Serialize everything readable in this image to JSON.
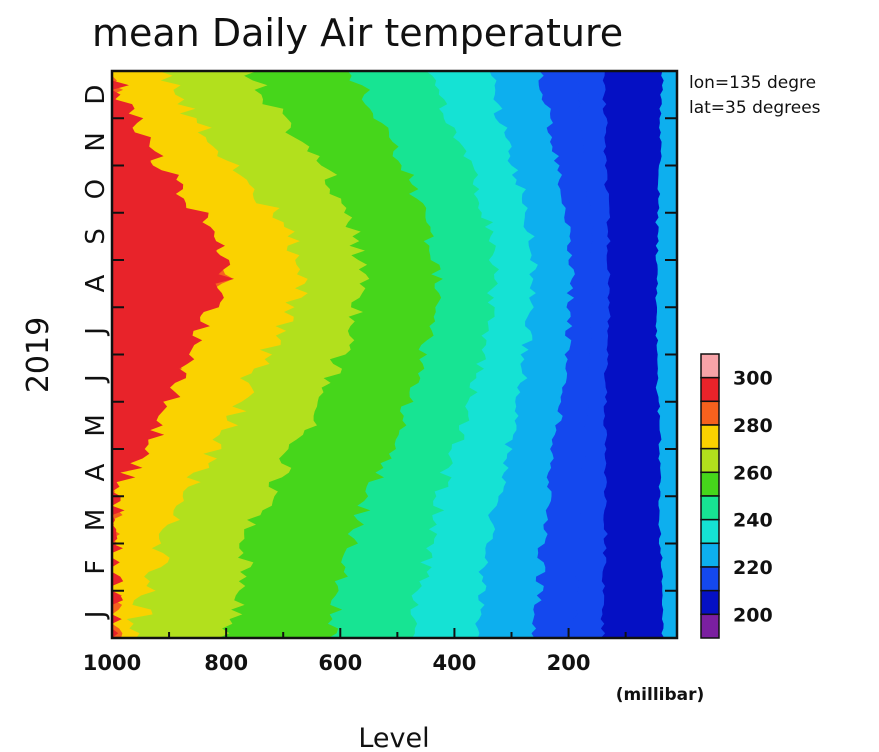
{
  "chart_data": {
    "type": "heatmap",
    "title": "mean Daily Air temperature",
    "xlabel": "Level",
    "x_unit": "(millibar)",
    "ylabel": "2019",
    "x_axis": {
      "reversed": true,
      "range": [
        1000,
        10
      ],
      "ticks": [
        1000,
        800,
        600,
        400,
        200
      ]
    },
    "y_axis": {
      "months": [
        "J",
        "F",
        "M",
        "A",
        "M",
        "J",
        "J",
        "A",
        "S",
        "O",
        "N",
        "D"
      ]
    },
    "annotations": [
      "lon=135 degre",
      "lat=35 degrees"
    ],
    "colorbar": {
      "labels": [
        300,
        280,
        260,
        240,
        220,
        200
      ],
      "levels": [
        {
          "value": 305,
          "color": "#f7a3a8"
        },
        {
          "value": 295,
          "color": "#e8232a"
        },
        {
          "value": 285,
          "color": "#f6611e"
        },
        {
          "value": 275,
          "color": "#fad200"
        },
        {
          "value": 265,
          "color": "#b2e01d"
        },
        {
          "value": 255,
          "color": "#46d61b"
        },
        {
          "value": 245,
          "color": "#17e493"
        },
        {
          "value": 235,
          "color": "#15e2d4"
        },
        {
          "value": 225,
          "color": "#0dafee"
        },
        {
          "value": 215,
          "color": "#1448ee"
        },
        {
          "value": 205,
          "color": "#0510c4"
        },
        {
          "value": 195,
          "color": "#7b1fa0"
        }
      ]
    },
    "band_boundaries": {
      "description_units": "millibar pressure level at which temperature falls below each threshold, sampled at month centers (Jan..Dec)",
      "t290": [
        1000,
        1000,
        1000,
        1000,
        950,
        900,
        860,
        800,
        850,
        920,
        980,
        1000
      ],
      "t280": [
        960,
        940,
        900,
        860,
        800,
        760,
        700,
        660,
        700,
        770,
        850,
        920
      ],
      "t270": [
        800,
        780,
        760,
        720,
        660,
        620,
        580,
        560,
        580,
        620,
        700,
        760
      ],
      "t260": [
        610,
        600,
        580,
        540,
        500,
        470,
        440,
        430,
        450,
        480,
        530,
        580
      ],
      "t250": [
        470,
        460,
        440,
        420,
        390,
        360,
        340,
        330,
        340,
        370,
        410,
        440
      ],
      "t240": [
        360,
        350,
        340,
        320,
        300,
        280,
        270,
        260,
        270,
        290,
        320,
        340
      ],
      "t230": [
        260,
        250,
        245,
        235,
        220,
        210,
        200,
        195,
        200,
        215,
        235,
        250
      ],
      "t220": [
        190,
        185,
        180,
        175,
        170,
        165,
        160,
        160,
        160,
        170,
        180,
        185
      ],
      "t210": [
        140,
        140,
        135,
        135,
        135,
        135,
        130,
        130,
        130,
        135,
        135,
        140
      ],
      "t_top220": [
        35,
        35,
        40,
        40,
        40,
        45,
        45,
        45,
        45,
        40,
        40,
        35
      ]
    }
  }
}
